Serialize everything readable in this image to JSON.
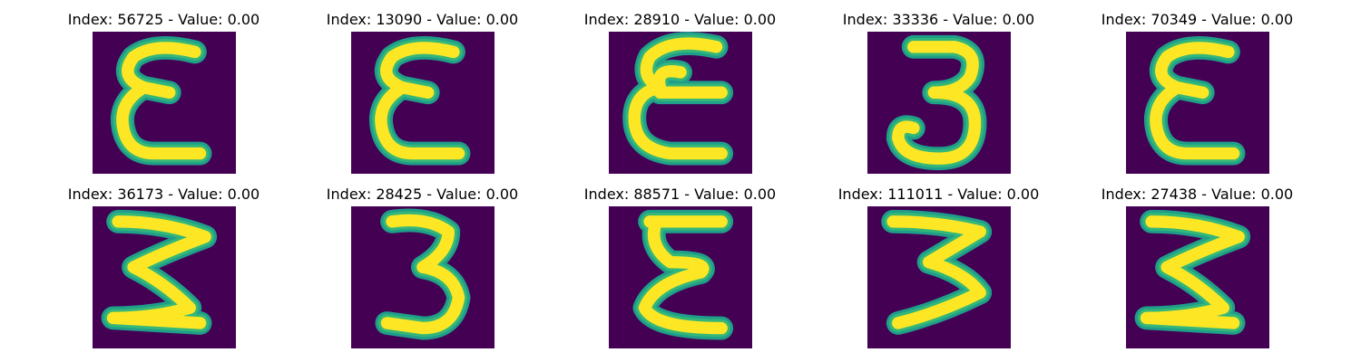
{
  "colors": {
    "background": "#440154",
    "stroke_edge": "#1f9e89",
    "stroke_mid": "#35b779",
    "stroke_core": "#fde725",
    "text": "#000000"
  },
  "panels": [
    {
      "title": "Index: 56725 - Value: 0.00",
      "glyph": "epsilon"
    },
    {
      "title": "Index: 13090 - Value: 0.00",
      "glyph": "epsilon"
    },
    {
      "title": "Index: 28910 - Value: 0.00",
      "glyph": "epsilon-loop"
    },
    {
      "title": "Index: 33336 - Value: 0.00",
      "glyph": "three-curl"
    },
    {
      "title": "Index: 70349 - Value: 0.00",
      "glyph": "epsilon"
    },
    {
      "title": "Index: 36173 - Value: 0.00",
      "glyph": "sigma"
    },
    {
      "title": "Index: 28425 - Value: 0.00",
      "glyph": "three"
    },
    {
      "title": "Index: 88571 - Value: 0.00",
      "glyph": "sigma-alt"
    },
    {
      "title": "Index: 111011 - Value: 0.00",
      "glyph": "three-open"
    },
    {
      "title": "Index: 27438 - Value: 0.00",
      "glyph": "sigma"
    }
  ]
}
